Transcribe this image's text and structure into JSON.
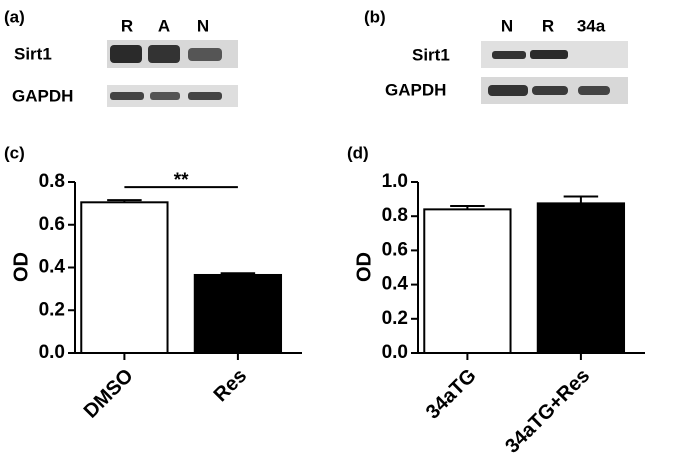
{
  "blots": [
    {
      "panel_label": "(a)",
      "lanes": [
        "R",
        "A",
        "N"
      ],
      "rows": [
        "Sirt1",
        "GAPDH"
      ]
    },
    {
      "panel_label": "(b)",
      "lanes": [
        "N",
        "R",
        "34a"
      ],
      "rows": [
        "Sirt1",
        "GAPDH"
      ]
    }
  ],
  "chart_data": [
    {
      "type": "bar",
      "panel_label": "(c)",
      "ylabel": "OD",
      "categories": [
        "DMSO",
        "Res"
      ],
      "values": [
        0.705,
        0.365
      ],
      "errors": [
        0.01,
        0.008
      ],
      "colors": [
        "#ffffff",
        "#000000"
      ],
      "annotation": "**",
      "ylim": [
        0,
        0.8
      ],
      "yticks": [
        {
          "value": 0,
          "label": "0.0"
        },
        0.2,
        0.4,
        0.6,
        0.8
      ]
    },
    {
      "type": "bar",
      "panel_label": "(d)",
      "ylabel": "OD",
      "categories": [
        "34aTG",
        "34aTG+Res"
      ],
      "values": [
        0.84,
        0.875
      ],
      "errors": [
        0.02,
        0.04
      ],
      "colors": [
        "#ffffff",
        "#000000"
      ],
      "ylim": [
        0,
        1.0
      ],
      "yticks": [
        {
          "value": 0,
          "label": "0.0"
        },
        0.2,
        0.4,
        0.6,
        0.8,
        {
          "value": 1.0,
          "label": "1.0"
        }
      ]
    }
  ]
}
